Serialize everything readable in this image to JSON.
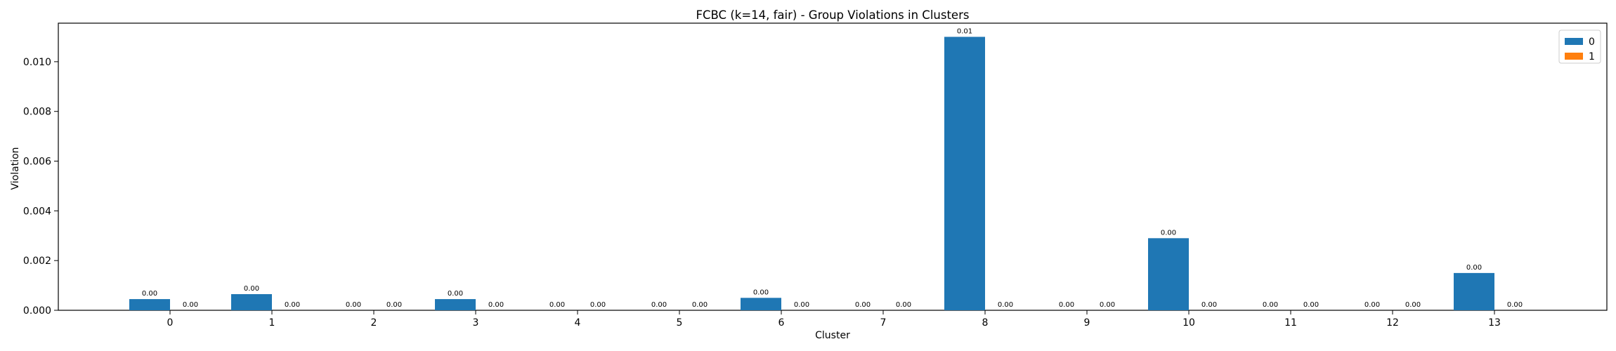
{
  "chart_data": {
    "type": "bar",
    "title": "FCBC (k=14, fair) - Group Violations in Clusters",
    "xlabel": "Cluster",
    "ylabel": "Violation",
    "categories": [
      "0",
      "1",
      "2",
      "3",
      "4",
      "5",
      "6",
      "7",
      "8",
      "9",
      "10",
      "11",
      "12",
      "13"
    ],
    "series": [
      {
        "name": "0",
        "color": "#1f77b4",
        "values": [
          0.00045,
          0.00065,
          0.0,
          0.00045,
          0.0,
          0.0,
          0.0005,
          0.0,
          0.011,
          0.0,
          0.0029,
          0.0,
          0.0,
          0.0015
        ],
        "labels": [
          "0.00",
          "0.00",
          "0.00",
          "0.00",
          "0.00",
          "0.00",
          "0.00",
          "0.00",
          "0.01",
          "0.00",
          "0.00",
          "0.00",
          "0.00",
          "0.00"
        ]
      },
      {
        "name": "1",
        "color": "#ff7f0e",
        "values": [
          0,
          0,
          0,
          0,
          0,
          0,
          0,
          0,
          0,
          0,
          0,
          0,
          0,
          0
        ],
        "labels": [
          "0.00",
          "0.00",
          "0.00",
          "0.00",
          "0.00",
          "0.00",
          "0.00",
          "0.00",
          "0.00",
          "0.00",
          "0.00",
          "0.00",
          "0.00",
          "0.00"
        ]
      }
    ],
    "yticks": [
      0.0,
      0.002,
      0.004,
      0.006,
      0.008,
      0.01
    ],
    "ytick_labels": [
      "0.000",
      "0.002",
      "0.004",
      "0.006",
      "0.008",
      "0.010"
    ],
    "ylim": [
      0,
      0.01155
    ],
    "legend_position": "top-right",
    "grid": false
  }
}
